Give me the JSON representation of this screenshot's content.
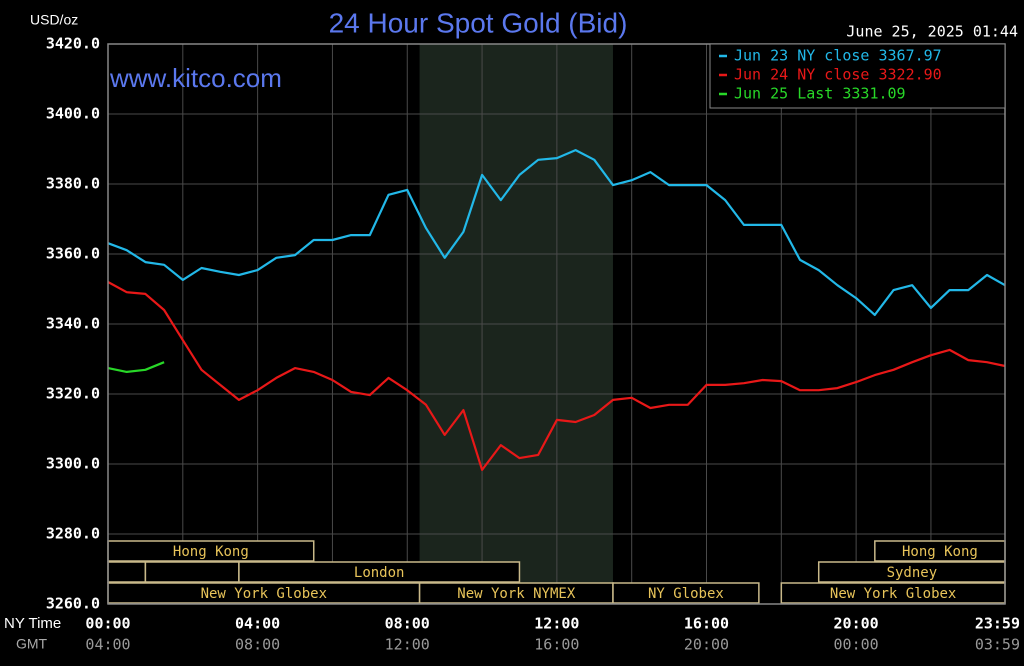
{
  "chart_data": {
    "type": "line",
    "title": "24 Hour Spot Gold (Bid)",
    "subtitle": "www.kitco.com",
    "timestamp": "June 25, 2025 01:44",
    "y_label": "USD/oz",
    "x_label": "NY Time",
    "x2_label": "GMT",
    "x": [
      0,
      0.5,
      1,
      1.5,
      2,
      2.5,
      3,
      3.5,
      4,
      4.5,
      5,
      5.5,
      6,
      6.5,
      7,
      7.5,
      8,
      8.5,
      9,
      9.5,
      10,
      10.5,
      11,
      11.5,
      12,
      12.5,
      13,
      13.5,
      14,
      14.5,
      15,
      15.5,
      16,
      16.5,
      17,
      17.5,
      18,
      18.5,
      19,
      19.5,
      20,
      20.5,
      21,
      21.5,
      22,
      22.5,
      23,
      23.5,
      23.98
    ],
    "series": [
      {
        "name": "Jun 23 NY close 3367.97",
        "color": "#22b8e8",
        "values": [
          3363.1,
          3361.1,
          3357.7,
          3356.9,
          3352.6,
          3356,
          3354.9,
          3354,
          3355.4,
          3358.9,
          3359.7,
          3364,
          3364,
          3365.4,
          3365.4,
          3376.9,
          3378.3,
          3367.4,
          3358.9,
          3366.3,
          3382.6,
          3375.4,
          3382.6,
          3386.9,
          3387.4,
          3389.7,
          3386.9,
          3379.7,
          3381.1,
          3383.4,
          3379.7,
          3379.7,
          3379.7,
          3375.4,
          3368.3,
          3368.3,
          3368.3,
          3358.3,
          3355.4,
          3351.1,
          3347.4,
          3342.6,
          3349.7,
          3351.1,
          3344.6,
          3349.7,
          3349.7,
          3354,
          3351.1
        ]
      },
      {
        "name": "Jun 24 NY close 3322.90",
        "color": "#e81818",
        "values": [
          3352,
          3349.1,
          3348.6,
          3344,
          3335.4,
          3326.9,
          3322.6,
          3318.3,
          3321.1,
          3324.6,
          3327.4,
          3326.3,
          3324,
          3320.6,
          3319.7,
          3324.6,
          3321.1,
          3316.9,
          3308.3,
          3315.4,
          3298.3,
          3305.4,
          3301.7,
          3302.6,
          3312.6,
          3312,
          3314,
          3318.3,
          3318.9,
          3316,
          3316.9,
          3316.9,
          3322.6,
          3322.6,
          3323.1,
          3324,
          3323.7,
          3321.1,
          3321.1,
          3321.7,
          3323.4,
          3325.4,
          3326.9,
          3329.1,
          3331.1,
          3332.6,
          3329.7,
          3329.1,
          3328
        ]
      },
      {
        "name": "Jun 25 Last 3331.09",
        "color": "#28d828",
        "values": [
          3327.4,
          3326.3,
          3326.9,
          3329.1,
          null,
          null,
          null,
          null,
          null,
          null,
          null,
          null,
          null,
          null,
          null,
          null,
          null,
          null,
          null,
          null,
          null,
          null,
          null,
          null,
          null,
          null,
          null,
          null,
          null,
          null,
          null,
          null,
          null,
          null,
          null,
          null,
          null,
          null,
          null,
          null,
          null,
          null,
          null,
          null,
          null,
          null,
          null,
          null,
          null
        ]
      }
    ],
    "xlim": [
      0,
      23.98
    ],
    "ylim": [
      3260,
      3420
    ],
    "yticks": [
      {
        "value": 3260,
        "label": "3260.0"
      },
      {
        "value": 3280,
        "label": "3280.0"
      },
      {
        "value": 3300,
        "label": "3300.0"
      },
      {
        "value": 3320,
        "label": "3320.0"
      },
      {
        "value": 3340,
        "label": "3340.0"
      },
      {
        "value": 3360,
        "label": "3360.0"
      },
      {
        "value": 3380,
        "label": "3380.0"
      },
      {
        "value": 3400,
        "label": "3400.0"
      },
      {
        "value": 3420,
        "label": "3420.0"
      }
    ],
    "xticks": [
      {
        "value": 0,
        "label": "00:00"
      },
      {
        "value": 4,
        "label": "04:00"
      },
      {
        "value": 8,
        "label": "08:00"
      },
      {
        "value": 12,
        "label": "12:00"
      },
      {
        "value": 16,
        "label": "16:00"
      },
      {
        "value": 20,
        "label": "20:00"
      },
      {
        "value": 23.98,
        "label": "23:59"
      }
    ],
    "x2ticks": [
      {
        "value": 0,
        "label": "04:00"
      },
      {
        "value": 4,
        "label": "08:00"
      },
      {
        "value": 8,
        "label": "12:00"
      },
      {
        "value": 12,
        "label": "16:00"
      },
      {
        "value": 16,
        "label": "20:00"
      },
      {
        "value": 20,
        "label": "00:00"
      },
      {
        "value": 23.98,
        "label": "03:59"
      }
    ],
    "x_minor_ticks": [
      2,
      6,
      10,
      14,
      18,
      22
    ],
    "grid": true,
    "legend": "upper right",
    "session_rows": [
      [
        {
          "label": "Hong Kong",
          "start": 0,
          "end": 5.5
        },
        {
          "label": "Hong Kong",
          "start": 20.5,
          "end": 23.98
        }
      ],
      [
        {
          "label": null,
          "start": 0,
          "end": 1
        },
        {
          "label": null,
          "start": 1,
          "end": 3.5
        },
        {
          "label": "London",
          "start": 3.5,
          "end": 11
        },
        {
          "label": "Sydney",
          "start": 19,
          "end": 23.98
        }
      ],
      [
        {
          "label": "New York Globex",
          "start": 0,
          "end": 8.33
        },
        {
          "label": "New York NYMEX",
          "start": 8.33,
          "end": 13.5,
          "highlight": true
        },
        {
          "label": "NY Globex",
          "start": 13.5,
          "end": 17.4
        },
        {
          "label": "New York Globex",
          "start": 18,
          "end": 23.98
        }
      ]
    ]
  }
}
